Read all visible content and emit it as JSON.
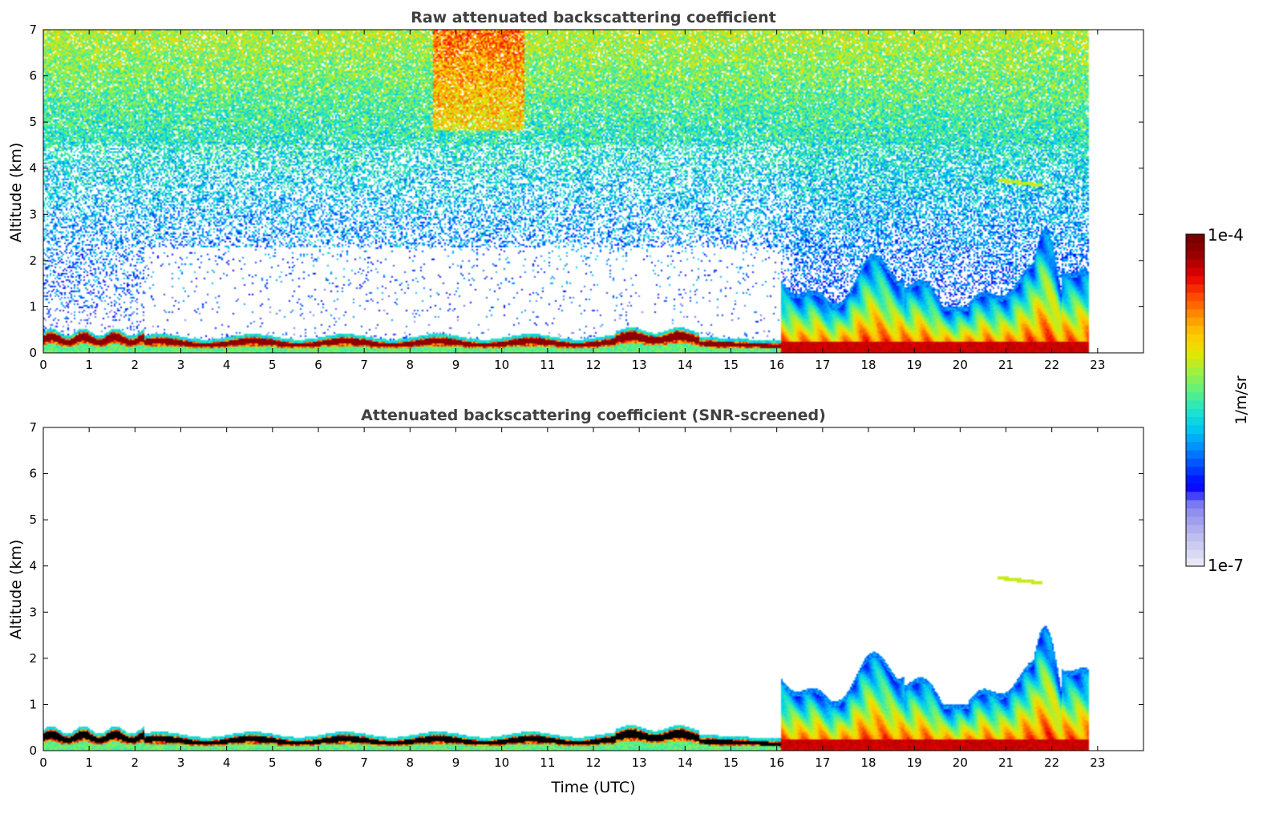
{
  "figure": {
    "colorbar": {
      "max_label": "1e-4",
      "min_label": "1e-7",
      "unit_label": "1/m/sr",
      "colors": [
        "#e6e6f7",
        "#c8c8f0",
        "#a6a6ec",
        "#8080f0",
        "#0000ff",
        "#0046ff",
        "#008cff",
        "#00c8f0",
        "#20e6c8",
        "#60f080",
        "#a0f040",
        "#e6e600",
        "#ffc800",
        "#ff8c00",
        "#ff4600",
        "#e60000",
        "#a00000",
        "#780000"
      ]
    }
  },
  "chart_data": [
    {
      "type": "heatmap",
      "title": "Raw attenuated backscattering coefficient",
      "xlabel": "",
      "ylabel": "Altitude (km)",
      "x_ticks": [
        "0",
        "1",
        "2",
        "3",
        "4",
        "5",
        "6",
        "7",
        "8",
        "9",
        "10",
        "11",
        "12",
        "13",
        "14",
        "15",
        "16",
        "17",
        "18",
        "19",
        "20",
        "21",
        "22",
        "23"
      ],
      "y_ticks": [
        "0",
        "1",
        "2",
        "3",
        "4",
        "5",
        "6",
        "7"
      ],
      "xlim": [
        0,
        24
      ],
      "ylim": [
        0,
        7
      ],
      "colorscale": "log",
      "color_range": [
        1e-07,
        0.0001
      ],
      "data_end_hour": 22.8,
      "noise_screened": false
    },
    {
      "type": "heatmap",
      "title": "Attenuated backscattering coefficient (SNR-screened)",
      "xlabel": "Time (UTC)",
      "ylabel": "Altitude (km)",
      "x_ticks": [
        "0",
        "1",
        "2",
        "3",
        "4",
        "5",
        "6",
        "7",
        "8",
        "9",
        "10",
        "11",
        "12",
        "13",
        "14",
        "15",
        "16",
        "17",
        "18",
        "19",
        "20",
        "21",
        "22",
        "23"
      ],
      "y_ticks": [
        "0",
        "1",
        "2",
        "3",
        "4",
        "5",
        "6",
        "7"
      ],
      "xlim": [
        0,
        24
      ],
      "ylim": [
        0,
        7
      ],
      "colorscale": "log",
      "color_range": [
        1e-07,
        0.0001
      ],
      "data_end_hour": 22.8,
      "noise_screened": true
    }
  ]
}
